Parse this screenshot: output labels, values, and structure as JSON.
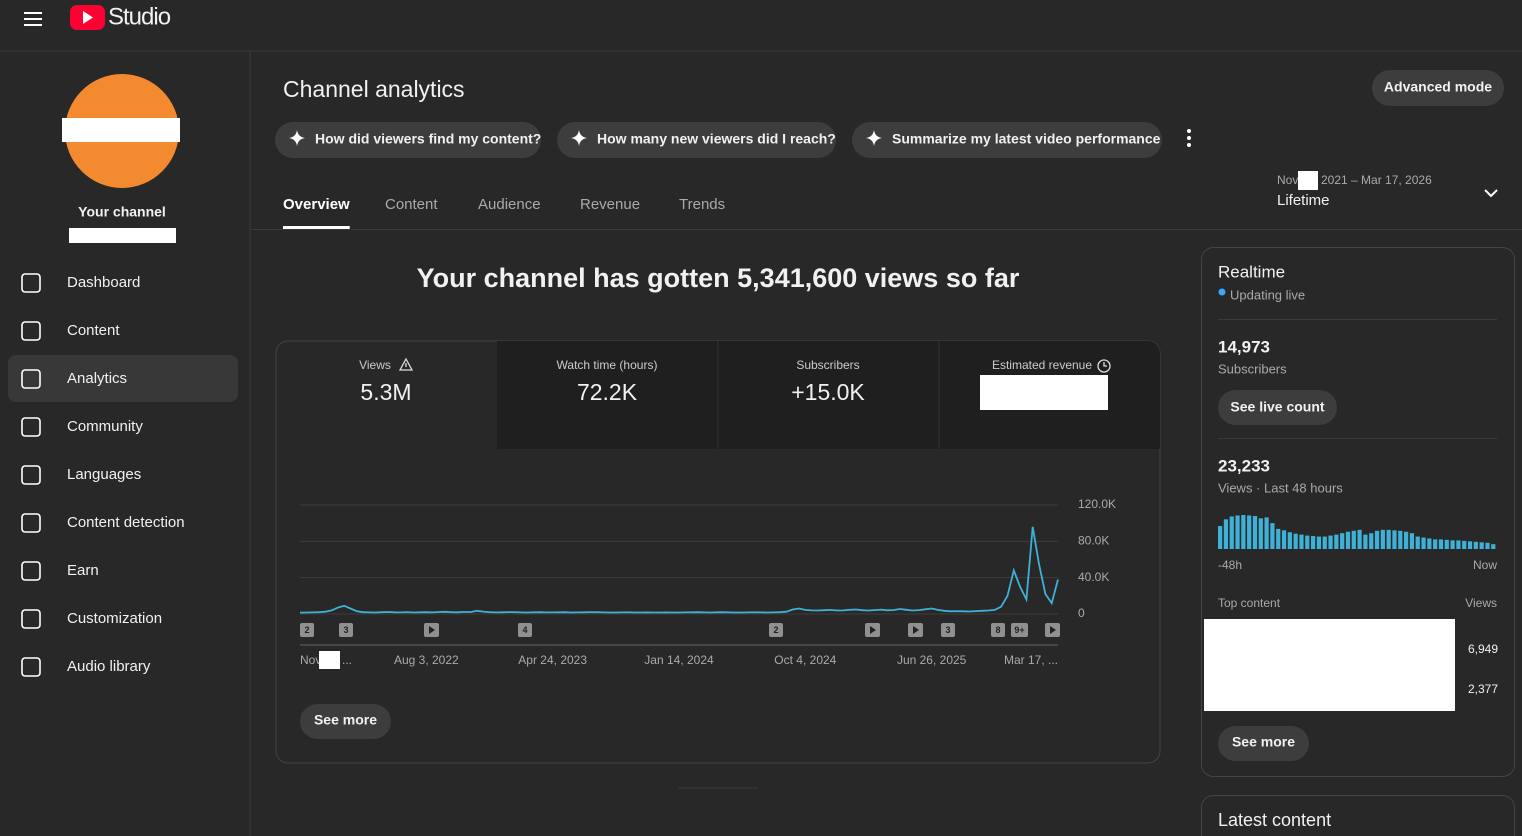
{
  "header": {
    "logo_text": "Studio"
  },
  "sidebar": {
    "channel_label": "Your channel",
    "nav": [
      "Dashboard",
      "Content",
      "Analytics",
      "Community",
      "Languages",
      "Content detection",
      "Earn",
      "Customization",
      "Audio library"
    ],
    "active": 2
  },
  "main": {
    "title": "Channel analytics",
    "advanced_button": "Advanced mode",
    "prompts": [
      "How did viewers find my content?",
      "How many new viewers did I reach?",
      "Summarize my latest video performance"
    ],
    "tabs": [
      "Overview",
      "Content",
      "Audience",
      "Revenue",
      "Trends"
    ],
    "active_tab": 0,
    "date_range": {
      "start": "Nov",
      "end": "2021 – Mar 17, 2026",
      "period": "Lifetime"
    },
    "headline": "Your channel has gotten 5,341,600 views so far",
    "metrics": [
      {
        "label": "Views",
        "value": "5.3M"
      },
      {
        "label": "Watch time (hours)",
        "value": "72.2K"
      },
      {
        "label": "Subscribers",
        "value": "+15.0K"
      },
      {
        "label": "Estimated revenue"
      }
    ],
    "chart": {
      "type": "line",
      "color": "#3fb0d6",
      "grid": true,
      "categories": [
        "Nov",
        null,
        null,
        null,
        null,
        null,
        null,
        null,
        null,
        null,
        null,
        null,
        null,
        null,
        null,
        null,
        null,
        null,
        null,
        null,
        "Aug 3, 2022",
        null,
        null,
        null,
        null,
        null,
        null,
        null,
        null,
        null,
        null,
        null,
        null,
        null,
        null,
        null,
        null,
        null,
        null,
        null,
        "Apr 24, 2023",
        null,
        null,
        null,
        null,
        null,
        null,
        null,
        null,
        null,
        null,
        null,
        null,
        null,
        null,
        null,
        null,
        null,
        null,
        null,
        "Jan 14, 2024",
        null,
        null,
        null,
        null,
        null,
        null,
        null,
        null,
        null,
        null,
        null,
        null,
        null,
        null,
        null,
        null,
        null,
        null,
        null,
        "Oct 4, 2024",
        null,
        null,
        null,
        null,
        null,
        null,
        null,
        null,
        null,
        null,
        null,
        null,
        null,
        null,
        null,
        null,
        null,
        null,
        null,
        "Jun 26, 2025",
        null,
        null,
        null,
        null,
        null,
        null,
        null,
        null,
        null,
        null,
        null,
        null,
        null,
        null,
        null,
        null,
        null,
        null,
        null,
        "Mar 17, ..."
      ],
      "x_label_tail": "...",
      "values": [
        1500,
        1600,
        1800,
        2000,
        2500,
        4000,
        7000,
        9000,
        6000,
        3000,
        2000,
        1800,
        1700,
        2000,
        2200,
        1900,
        1800,
        2100,
        1700,
        1900,
        2000,
        1800,
        2200,
        2400,
        2000,
        1900,
        2300,
        2100,
        3500,
        2600,
        2000,
        1800,
        1900,
        2100,
        2000,
        1800,
        1700,
        1900,
        2000,
        1800,
        1800,
        1900,
        2000,
        1700,
        1800,
        1900,
        2100,
        2000,
        1800,
        1700,
        1700,
        1800,
        1900,
        1600,
        1700,
        1800,
        1600,
        1700,
        1800,
        1700,
        1700,
        1800,
        1900,
        2000,
        1800,
        1700,
        1900,
        2000,
        1800,
        1700,
        1700,
        1800,
        1900,
        1800,
        1700,
        1800,
        2000,
        2500,
        5000,
        6000,
        4500,
        4000,
        3800,
        4200,
        4500,
        3900,
        4000,
        4600,
        5000,
        4200,
        3800,
        4300,
        4800,
        4100,
        4400,
        5500,
        4600,
        3900,
        4300,
        5200,
        6000,
        4500,
        3500,
        3000,
        3200,
        3000,
        2800,
        3200,
        3500,
        3800,
        4500,
        8000,
        20000,
        48000,
        30000,
        16000,
        96000,
        55000,
        22000,
        12000,
        38000
      ],
      "ylim": [
        0,
        120000
      ],
      "yticks": [
        0,
        {
          "value": 40000,
          "label": "40.0K"
        },
        {
          "value": 80000,
          "label": "80.0K"
        },
        {
          "value": 120000,
          "label": "120.0K"
        }
      ],
      "markers": [
        "2",
        "3",
        "4",
        "2",
        "3",
        "8",
        "9+"
      ]
    },
    "see_more": "See more"
  },
  "realtime": {
    "title": "Realtime",
    "status": "Updating live",
    "subscribers": {
      "value": "14,973",
      "label": "Subscribers",
      "button": "See live count"
    },
    "views": {
      "value": "23,233",
      "label": "Views · Last 48 hours"
    },
    "chart": {
      "type": "bar",
      "color": "#3fb0d6",
      "values": [
        480,
        620,
        680,
        700,
        710,
        700,
        690,
        640,
        660,
        540,
        420,
        390,
        350,
        320,
        300,
        280,
        270,
        260,
        260,
        280,
        300,
        330,
        360,
        380,
        400,
        300,
        330,
        380,
        400,
        400,
        390,
        380,
        360,
        330,
        260,
        240,
        220,
        200,
        200,
        190,
        180,
        180,
        170,
        160,
        150,
        140,
        130,
        100
      ],
      "x_labels": [
        "-48h",
        "Now"
      ]
    },
    "top_content": {
      "label": "Top content",
      "column": "Views",
      "rows": [
        "6,949",
        "2,377"
      ]
    },
    "see_more": "See more"
  },
  "latest": {
    "title": "Latest content"
  }
}
